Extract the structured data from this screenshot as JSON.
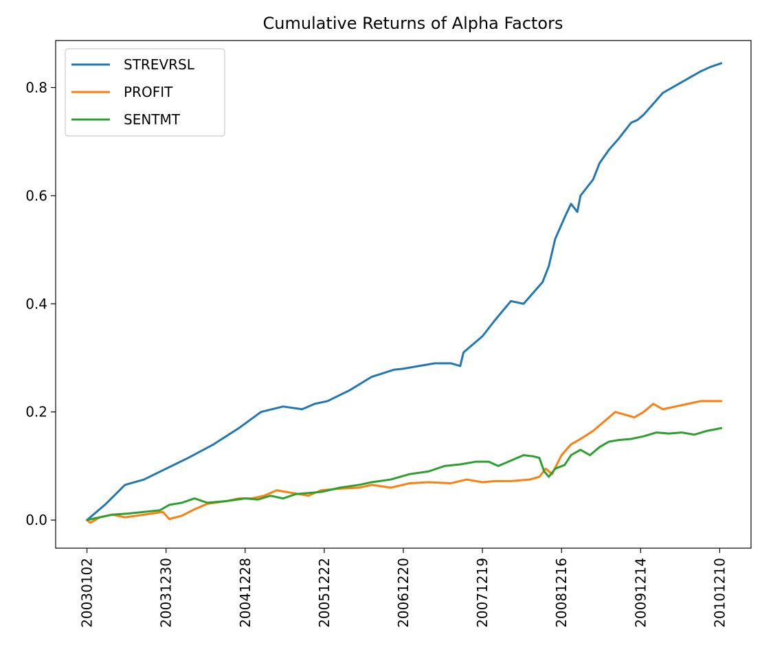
{
  "chart_data": {
    "type": "line",
    "title": "Cumulative Returns of Alpha Factors",
    "xlabel": "",
    "ylabel": "",
    "x_tick_labels": [
      "20030102",
      "20031230",
      "20041228",
      "20051222",
      "20061220",
      "20071219",
      "20081216",
      "20091214",
      "20101210"
    ],
    "x_ticks_index": [
      0,
      250,
      500,
      750,
      1000,
      1250,
      1500,
      1750,
      2000
    ],
    "x_range": [
      -99,
      2099
    ],
    "y_ticks": [
      0.0,
      0.2,
      0.4,
      0.6,
      0.8
    ],
    "y_tick_labels": [
      "0.0",
      "0.2",
      "0.4",
      "0.6",
      "0.8"
    ],
    "ylim": [
      -0.052,
      0.887
    ],
    "grid": false,
    "legend_position": "top-left",
    "series": [
      {
        "name": "STREVRSL",
        "color": "#1f77b4",
        "x": [
          0,
          60,
          120,
          180,
          250,
          320,
          400,
          480,
          550,
          620,
          680,
          720,
          760,
          830,
          900,
          970,
          1000,
          1050,
          1100,
          1150,
          1180,
          1190,
          1250,
          1290,
          1340,
          1380,
          1410,
          1440,
          1460,
          1480,
          1510,
          1530,
          1550,
          1560,
          1600,
          1620,
          1650,
          1680,
          1700,
          1720,
          1740,
          1760,
          1790,
          1820,
          1850,
          1880,
          1910,
          1940,
          1970,
          2005
        ],
        "y": [
          0.0,
          0.03,
          0.065,
          0.075,
          0.095,
          0.115,
          0.14,
          0.17,
          0.2,
          0.21,
          0.205,
          0.215,
          0.22,
          0.24,
          0.265,
          0.278,
          0.28,
          0.285,
          0.29,
          0.29,
          0.285,
          0.31,
          0.34,
          0.37,
          0.405,
          0.4,
          0.42,
          0.44,
          0.47,
          0.52,
          0.56,
          0.585,
          0.57,
          0.6,
          0.63,
          0.66,
          0.685,
          0.705,
          0.72,
          0.735,
          0.74,
          0.75,
          0.77,
          0.79,
          0.8,
          0.81,
          0.82,
          0.83,
          0.838,
          0.845
        ]
      },
      {
        "name": "PROFIT",
        "color": "#ff7f0e",
        "x": [
          0,
          10,
          40,
          80,
          120,
          180,
          240,
          260,
          300,
          340,
          380,
          440,
          480,
          520,
          560,
          600,
          650,
          700,
          740,
          800,
          860,
          900,
          960,
          1020,
          1080,
          1150,
          1200,
          1250,
          1290,
          1340,
          1400,
          1430,
          1450,
          1470,
          1500,
          1530,
          1560,
          1600,
          1640,
          1670,
          1700,
          1730,
          1760,
          1790,
          1820,
          1860,
          1900,
          1940,
          1980,
          2005
        ],
        "y": [
          0.0,
          -0.005,
          0.005,
          0.01,
          0.005,
          0.01,
          0.015,
          0.002,
          0.008,
          0.02,
          0.03,
          0.035,
          0.04,
          0.04,
          0.045,
          0.055,
          0.05,
          0.045,
          0.055,
          0.058,
          0.06,
          0.065,
          0.06,
          0.068,
          0.07,
          0.068,
          0.075,
          0.07,
          0.072,
          0.072,
          0.075,
          0.08,
          0.095,
          0.085,
          0.12,
          0.14,
          0.15,
          0.165,
          0.185,
          0.2,
          0.195,
          0.19,
          0.2,
          0.215,
          0.205,
          0.21,
          0.215,
          0.22,
          0.22,
          0.22
        ]
      },
      {
        "name": "SENTMT",
        "color": "#2ca02c",
        "x": [
          0,
          40,
          80,
          130,
          180,
          230,
          260,
          300,
          340,
          380,
          440,
          500,
          540,
          580,
          620,
          660,
          700,
          740,
          800,
          860,
          900,
          960,
          1020,
          1080,
          1130,
          1180,
          1230,
          1270,
          1300,
          1340,
          1380,
          1410,
          1430,
          1445,
          1460,
          1480,
          1510,
          1530,
          1560,
          1590,
          1620,
          1650,
          1680,
          1720,
          1760,
          1800,
          1840,
          1880,
          1920,
          1960,
          2005
        ],
        "y": [
          0.0,
          0.005,
          0.01,
          0.012,
          0.015,
          0.018,
          0.028,
          0.032,
          0.04,
          0.032,
          0.035,
          0.04,
          0.038,
          0.045,
          0.04,
          0.048,
          0.05,
          0.052,
          0.06,
          0.065,
          0.07,
          0.075,
          0.085,
          0.09,
          0.1,
          0.103,
          0.108,
          0.108,
          0.1,
          0.11,
          0.12,
          0.118,
          0.115,
          0.09,
          0.08,
          0.095,
          0.102,
          0.12,
          0.13,
          0.12,
          0.135,
          0.145,
          0.148,
          0.15,
          0.155,
          0.162,
          0.16,
          0.162,
          0.158,
          0.165,
          0.17
        ]
      }
    ]
  }
}
